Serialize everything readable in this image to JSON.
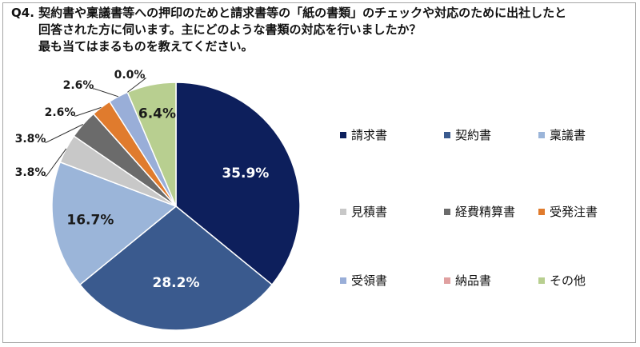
{
  "title": {
    "line1": "Q4. 契約書や稟議書等への押印のためと請求書等の「紙の書類」のチェックや対応のために出社したと",
    "line2": "回答された方に伺います。主にどのような書類の対応を行いましたか？",
    "line3": "最も当てはまるものを教えてください。"
  },
  "chart_data": {
    "type": "pie",
    "start_angle": "12 o'clock",
    "direction": "clockwise",
    "legend_position": "right",
    "slices": [
      {
        "name": "請求書",
        "value": 35.9,
        "label": "35.9%",
        "color": "#0d1f5c"
      },
      {
        "name": "契約書",
        "value": 28.2,
        "label": "28.2%",
        "color": "#3a5a8e"
      },
      {
        "name": "稟議書",
        "value": 16.7,
        "label": "16.7%",
        "color": "#9bb5d9"
      },
      {
        "name": "見積書",
        "value": 3.8,
        "label": "3.8%",
        "color": "#c8c8c8"
      },
      {
        "name": "経費精算書",
        "value": 3.8,
        "label": "3.8%",
        "color": "#6b6b6b"
      },
      {
        "name": "受発注書",
        "value": 2.6,
        "label": "2.6%",
        "color": "#e07b2d"
      },
      {
        "name": "受領書",
        "value": 2.6,
        "label": "2.6%",
        "color": "#99aed8"
      },
      {
        "name": "納品書",
        "value": 0.0,
        "label": "0.0%",
        "color": "#e0a0a0"
      },
      {
        "name": "その他",
        "value": 6.4,
        "label": "6.4%",
        "color": "#b8cf90"
      }
    ]
  }
}
